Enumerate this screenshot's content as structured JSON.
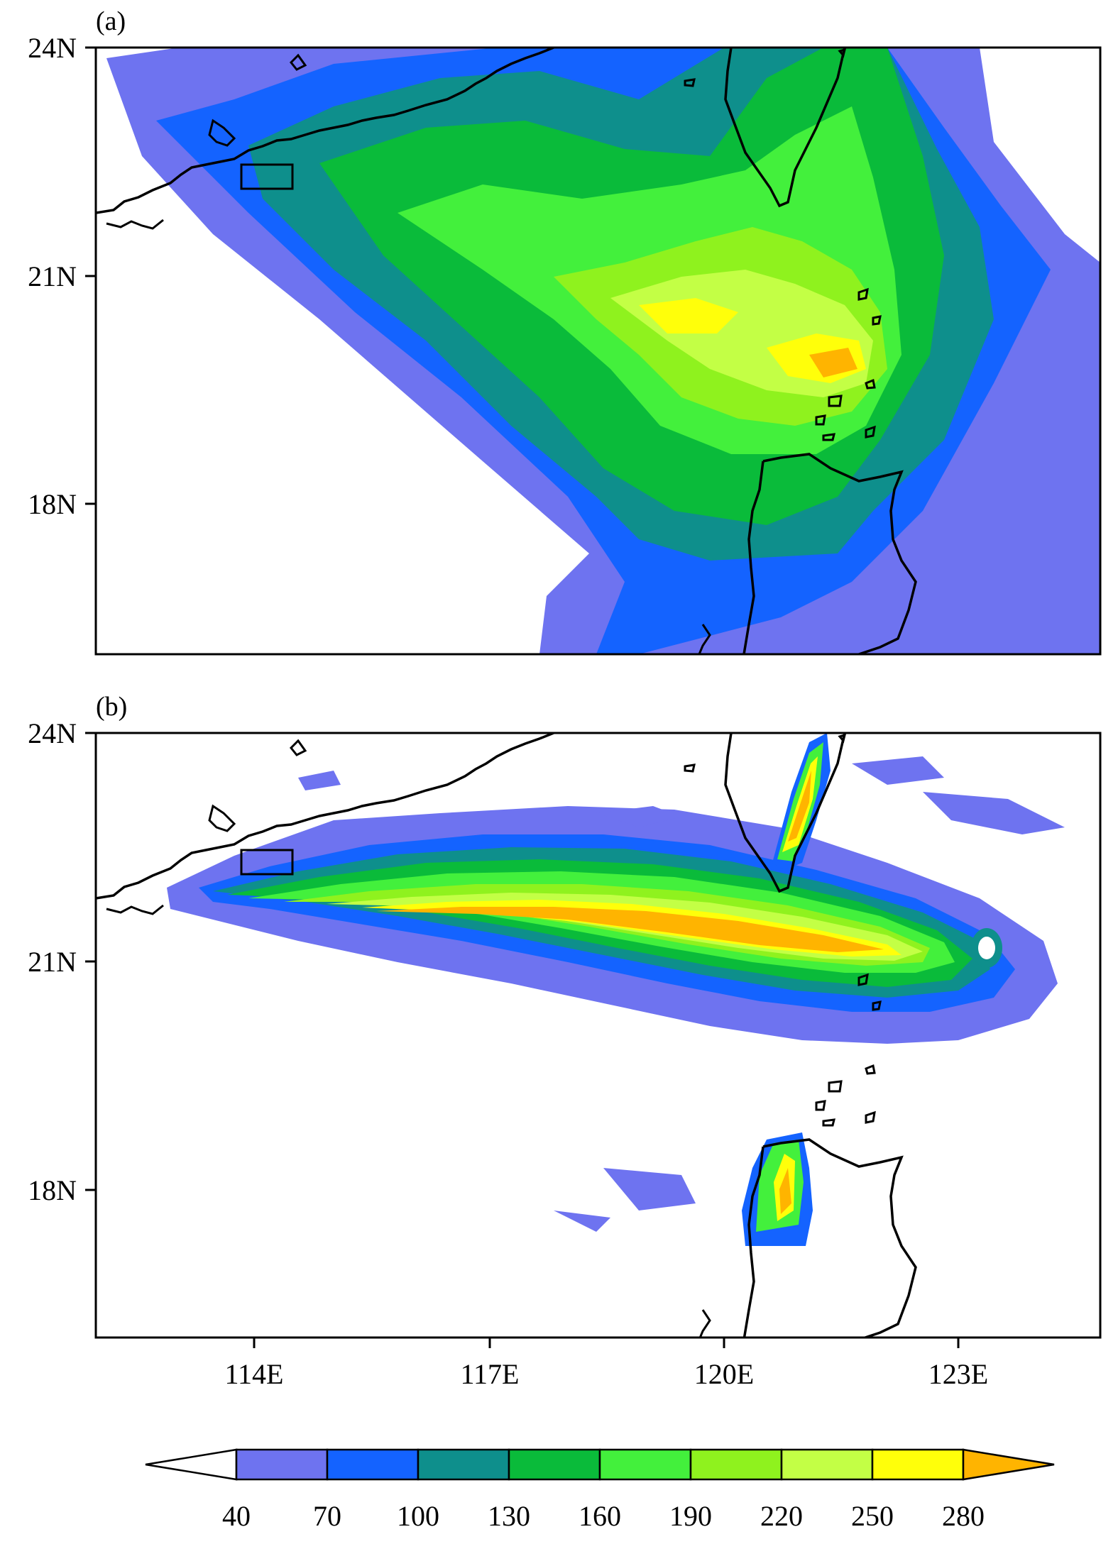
{
  "panels": [
    {
      "label": "(a)"
    },
    {
      "label": "(b)"
    }
  ],
  "lat_ticks": [
    "24N",
    "21N",
    "18N"
  ],
  "lon_ticks": [
    "114E",
    "117E",
    "120E",
    "123E"
  ],
  "colorbar": {
    "ticks": [
      "40",
      "70",
      "100",
      "130",
      "160",
      "190",
      "220",
      "250",
      "280"
    ],
    "colors": [
      "#ffffff",
      "#6e73f0",
      "#1463ff",
      "#0e8f8c",
      "#0abb3a",
      "#43f03c",
      "#8ff21e",
      "#c3ff45",
      "#ffff0a",
      "#ffb400"
    ]
  },
  "map": {
    "extent_lon": [
      112,
      124.8
    ],
    "extent_lat": [
      16,
      24
    ]
  }
}
